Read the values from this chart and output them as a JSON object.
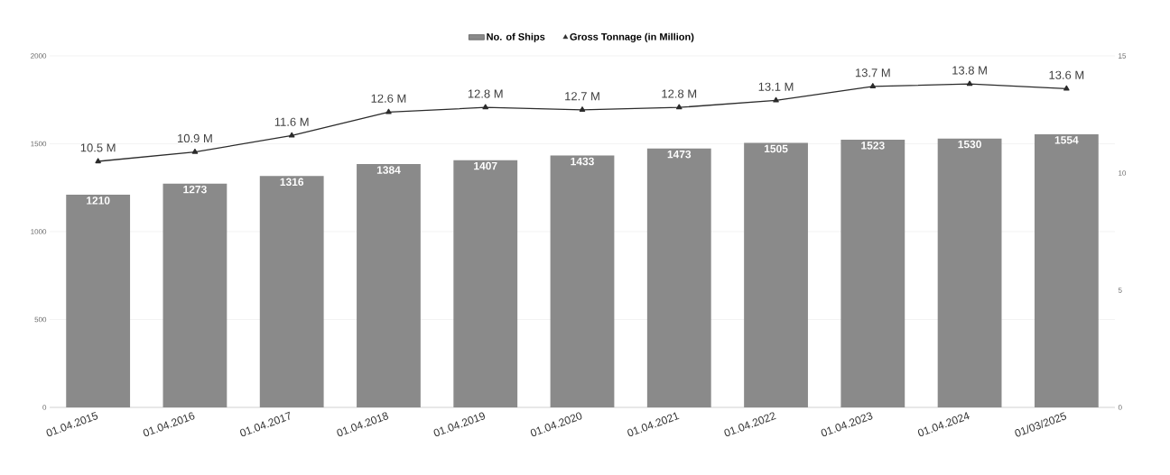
{
  "chart_data": {
    "type": "bar",
    "categories": [
      "01.04.2015",
      "01.04.2016",
      "01.04.2017",
      "01.04.2018",
      "01.04.2019",
      "01.04.2020",
      "01.04.2021",
      "01.04.2022",
      "01.04.2023",
      "01.04.2024",
      "01/03/2025"
    ],
    "series": [
      {
        "name": "No. of Ships",
        "color": "#8a8a8a",
        "values": [
          1210,
          1273,
          1316,
          1384,
          1407,
          1433,
          1473,
          1505,
          1523,
          1530,
          1554
        ],
        "value_labels": [
          "1210",
          "1273",
          "1316",
          "1384",
          "1407",
          "1433",
          "1473",
          "1505",
          "1523",
          "1530",
          "1554"
        ]
      },
      {
        "name": "Gross Tonnage (in Million)",
        "type": "line",
        "axis": "y2",
        "color": "#2b2b2b",
        "marker": "triangle",
        "values": [
          10.5,
          10.9,
          11.6,
          12.6,
          12.8,
          12.7,
          12.8,
          13.1,
          13.7,
          13.8,
          13.6
        ],
        "value_labels": [
          "10.5 M",
          "10.9 M",
          "11.6 M",
          "12.6 M",
          "12.8 M",
          "12.7 M",
          "12.8 M",
          "13.1 M",
          "13.7 M",
          "13.8 M",
          "13.6 M"
        ]
      }
    ],
    "ylim": [
      0,
      2000
    ],
    "yticks": [
      0,
      500,
      1000,
      1500,
      2000
    ],
    "y2lim": [
      0,
      15
    ],
    "y2ticks": [
      0,
      5,
      10,
      15
    ],
    "grid": "y",
    "legend": "top"
  }
}
